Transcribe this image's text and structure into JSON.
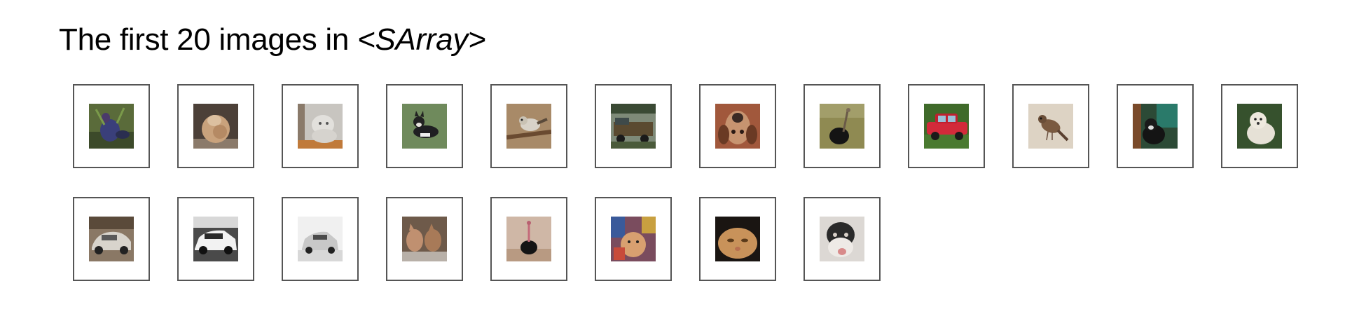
{
  "title": {
    "text": "The first 20 images in ",
    "type_label": "<SArray>"
  },
  "images": [
    {
      "name": "bird-image",
      "bg": "#5a6b3a"
    },
    {
      "name": "rabbit-image",
      "bg": "#c9a98a"
    },
    {
      "name": "cat-white-image",
      "bg": "#b9b6b0"
    },
    {
      "name": "dog-image",
      "bg": "#6f8a5c"
    },
    {
      "name": "bird-branch-image",
      "bg": "#a88a68"
    },
    {
      "name": "truck-image",
      "bg": "#5b6552"
    },
    {
      "name": "dog-face-image",
      "bg": "#a1583c"
    },
    {
      "name": "ostrich-image",
      "bg": "#8f8a52"
    },
    {
      "name": "red-car-image",
      "bg": "#3f6a2a"
    },
    {
      "name": "sparrow-image",
      "bg": "#d8cdbd"
    },
    {
      "name": "cat-dark-image",
      "bg": "#2c4a36"
    },
    {
      "name": "white-dog-image",
      "bg": "#36512d"
    },
    {
      "name": "silver-car-image",
      "bg": "#8a7865"
    },
    {
      "name": "white-car-image",
      "bg": "#4a4a4a"
    },
    {
      "name": "hatchback-image",
      "bg": "#eeeeee"
    },
    {
      "name": "cats-image",
      "bg": "#6e5a4a"
    },
    {
      "name": "ostrich-standing-image",
      "bg": "#cfb7a6"
    },
    {
      "name": "cat-colorful-image",
      "bg": "#7a4c5e"
    },
    {
      "name": "cat-face-image",
      "bg": "#b98650"
    },
    {
      "name": "cat-bw-image",
      "bg": "#dcd8d4"
    }
  ]
}
